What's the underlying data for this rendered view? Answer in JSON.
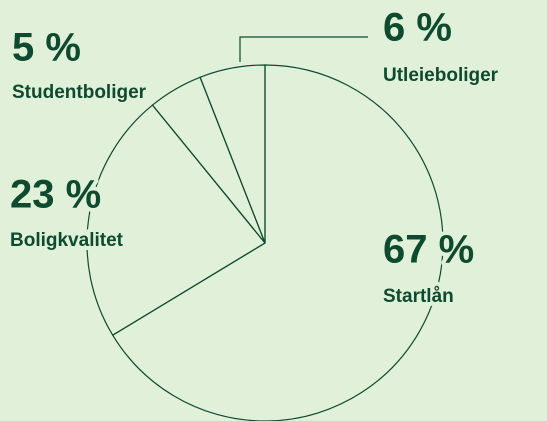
{
  "chart_data": {
    "type": "pie",
    "categories": [
      "Startlån",
      "Boligkvalitet",
      "Studentboliger",
      "Utleieboliger"
    ],
    "values": [
      67,
      23,
      5,
      6
    ],
    "value_labels": [
      "67 %",
      "23 %",
      "5 %",
      "6 %"
    ],
    "color": "#0e4a2f",
    "background": "#e1f0d8"
  }
}
